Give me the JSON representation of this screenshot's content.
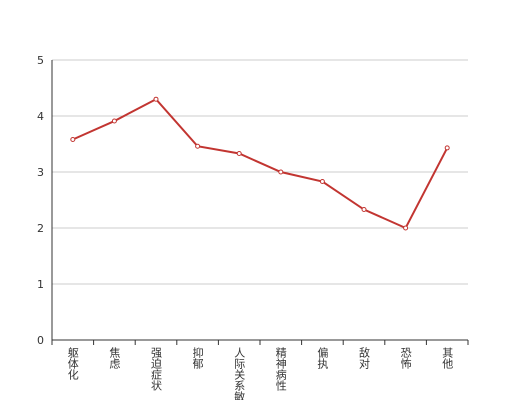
{
  "chart_data": {
    "type": "line",
    "categories": [
      "躯体化",
      "焦虑",
      "强迫症状",
      "抑郁",
      "人际关系敏感",
      "精神病性",
      "偏执",
      "敌对",
      "恐怖",
      "其他"
    ],
    "series": [
      {
        "color": "#c23531",
        "values": [
          3.58,
          3.91,
          4.3,
          3.46,
          3.33,
          3.0,
          2.83,
          2.33,
          2.0,
          3.43
        ]
      }
    ],
    "ylim": [
      0,
      5
    ],
    "yticks": [
      0,
      1,
      2,
      3,
      4,
      5
    ],
    "grid": true
  }
}
